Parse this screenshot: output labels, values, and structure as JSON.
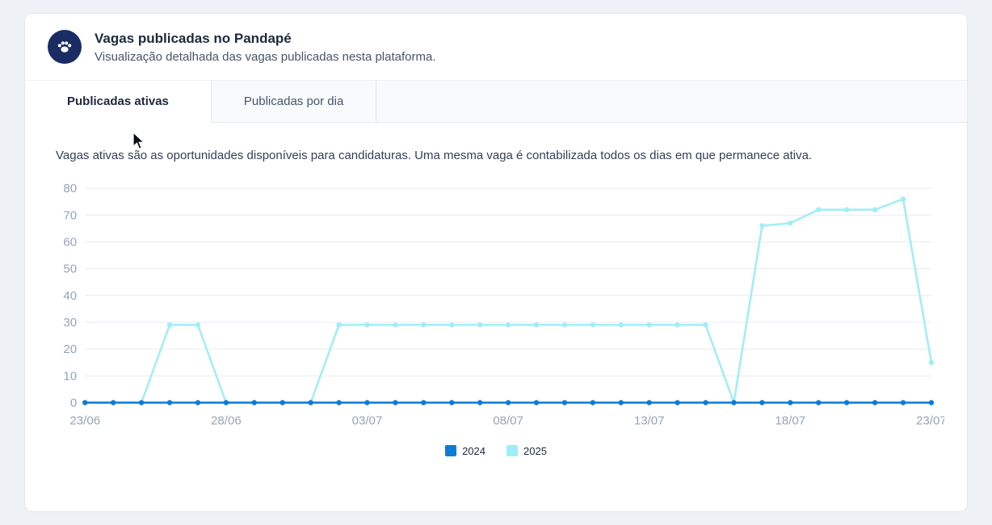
{
  "card": {
    "title": "Vagas publicadas no Pandapé",
    "subtitle": "Visualização detalhada das vagas publicadas nesta plataforma."
  },
  "tabs": [
    {
      "label": "Publicadas ativas",
      "active": true
    },
    {
      "label": "Publicadas por dia",
      "active": false
    }
  ],
  "description": "Vagas ativas são as oportunidades disponíveis para candidaturas. Uma mesma vaga é contabilizada todos os dias em que permanece ativa.",
  "icons": {
    "logo": "paw-icon",
    "cursor": "mouse-cursor"
  },
  "colors": {
    "page_background": "#eef2f6",
    "card_background": "#ffffff",
    "logo_background": "#1b2c64",
    "grid_line": "#e6ebf1",
    "axis_label": "#94a3b8",
    "series_2024": "#0d7bd6",
    "series_2025": "#9feef7"
  },
  "chart_data": {
    "type": "line",
    "x": [
      "23/06",
      "24/06",
      "25/06",
      "26/06",
      "27/06",
      "28/06",
      "29/06",
      "30/06",
      "01/07",
      "02/07",
      "03/07",
      "04/07",
      "05/07",
      "06/07",
      "07/07",
      "08/07",
      "09/07",
      "10/07",
      "11/07",
      "12/07",
      "13/07",
      "14/07",
      "15/07",
      "16/07",
      "17/07",
      "18/07",
      "19/07",
      "20/07",
      "21/07",
      "22/07",
      "23/07"
    ],
    "x_tick_labels": [
      "23/06",
      "28/06",
      "03/07",
      "08/07",
      "13/07",
      "18/07",
      "23/07"
    ],
    "x_tick_every": 5,
    "series": [
      {
        "name": "2024",
        "color": "#0d7bd6",
        "values": [
          0,
          0,
          0,
          0,
          0,
          0,
          0,
          0,
          0,
          0,
          0,
          0,
          0,
          0,
          0,
          0,
          0,
          0,
          0,
          0,
          0,
          0,
          0,
          0,
          0,
          0,
          0,
          0,
          0,
          0,
          0
        ]
      },
      {
        "name": "2025",
        "color": "#9feef7",
        "values": [
          0,
          0,
          0,
          29,
          29,
          0,
          0,
          0,
          0,
          29,
          29,
          29,
          29,
          29,
          29,
          29,
          29,
          29,
          29,
          29,
          29,
          29,
          29,
          0,
          66,
          67,
          72,
          72,
          72,
          76,
          15
        ]
      }
    ],
    "title": "",
    "xlabel": "",
    "ylabel": "",
    "ylim": [
      0,
      80
    ],
    "y_ticks": [
      0,
      10,
      20,
      30,
      40,
      50,
      60,
      70,
      80
    ],
    "grid": true,
    "legend_position": "bottom"
  }
}
